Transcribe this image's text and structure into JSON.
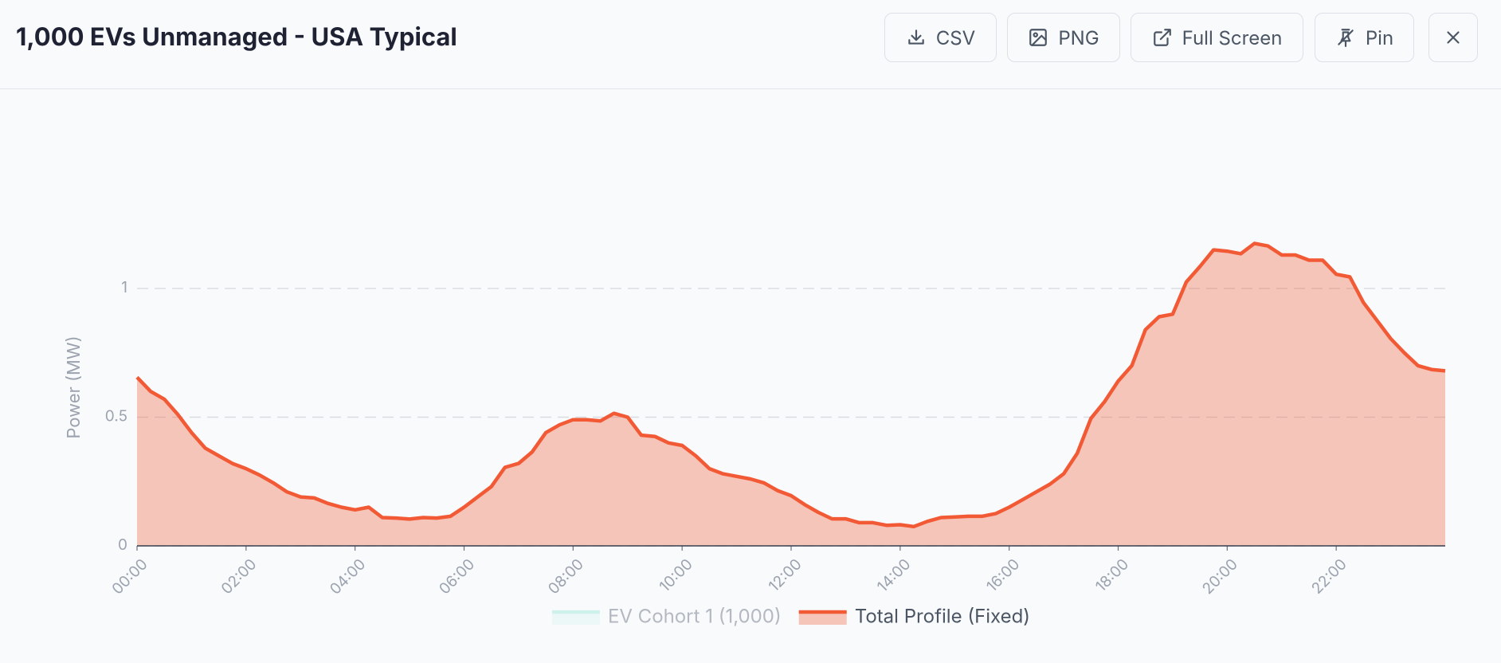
{
  "header": {
    "title": "1,000 EVs Unmanaged - USA Typical",
    "buttons": [
      "CSV",
      "PNG",
      "Full Screen",
      "Pin"
    ]
  },
  "chart_data": {
    "type": "area",
    "y_label": "Power (MW)",
    "x": [
      0,
      0.25,
      0.5,
      0.75,
      1,
      1.25,
      1.5,
      1.75,
      2,
      2.25,
      2.5,
      2.75,
      3,
      3.25,
      3.5,
      3.75,
      4,
      4.25,
      4.5,
      4.75,
      5,
      5.25,
      5.5,
      5.75,
      6,
      6.25,
      6.5,
      6.75,
      7,
      7.25,
      7.5,
      7.75,
      8,
      8.25,
      8.5,
      8.75,
      9,
      9.25,
      9.5,
      9.75,
      10,
      10.25,
      10.5,
      10.75,
      11,
      11.25,
      11.5,
      11.75,
      12,
      12.25,
      12.5,
      12.75,
      13,
      13.25,
      13.5,
      13.75,
      14,
      14.25,
      14.5,
      14.75,
      15,
      15.25,
      15.5,
      15.75,
      16,
      16.25,
      16.5,
      16.75,
      17,
      17.25,
      17.5,
      17.75,
      18,
      18.25,
      18.5,
      18.75,
      19,
      19.25,
      19.5,
      19.75,
      20,
      20.25,
      20.5,
      20.75,
      21,
      21.25,
      21.5,
      21.75,
      22,
      22.25,
      22.5,
      22.75,
      23,
      23.25,
      23.5,
      23.75,
      24
    ],
    "xlim": [
      0,
      24
    ],
    "xticks": [
      {
        "value": 0,
        "label": "00:00"
      },
      {
        "value": 2,
        "label": "02:00"
      },
      {
        "value": 4,
        "label": "04:00"
      },
      {
        "value": 6,
        "label": "06:00"
      },
      {
        "value": 8,
        "label": "08:00"
      },
      {
        "value": 10,
        "label": "10:00"
      },
      {
        "value": 12,
        "label": "12:00"
      },
      {
        "value": 14,
        "label": "14:00"
      },
      {
        "value": 16,
        "label": "16:00"
      },
      {
        "value": 18,
        "label": "18:00"
      },
      {
        "value": 20,
        "label": "20:00"
      },
      {
        "value": 22,
        "label": "22:00"
      }
    ],
    "ylim": [
      0,
      1.25
    ],
    "yticks": [
      0,
      0.5,
      1
    ],
    "grid": true,
    "series": [
      {
        "name": "EV Cohort 1 (1,000)",
        "color": "#99e6d8",
        "visible": false
      },
      {
        "name": "Total Profile (Fixed)",
        "color": "#f25a35",
        "visible": true,
        "values": [
          0.655,
          0.6,
          0.57,
          0.51,
          0.44,
          0.38,
          0.35,
          0.32,
          0.3,
          0.275,
          0.245,
          0.21,
          0.19,
          0.186,
          0.165,
          0.15,
          0.14,
          0.15,
          0.11,
          0.108,
          0.104,
          0.11,
          0.108,
          0.115,
          0.15,
          0.19,
          0.23,
          0.305,
          0.32,
          0.365,
          0.44,
          0.47,
          0.49,
          0.49,
          0.485,
          0.515,
          0.5,
          0.43,
          0.425,
          0.4,
          0.39,
          0.35,
          0.3,
          0.28,
          0.27,
          0.26,
          0.245,
          0.215,
          0.195,
          0.16,
          0.13,
          0.105,
          0.105,
          0.09,
          0.09,
          0.08,
          0.082,
          0.075,
          0.095,
          0.11,
          0.112,
          0.115,
          0.115,
          0.125,
          0.15,
          0.18,
          0.21,
          0.24,
          0.28,
          0.36,
          0.495,
          0.56,
          0.64,
          0.7,
          0.84,
          0.89,
          0.9,
          1.025,
          1.085,
          1.15,
          1.145,
          1.135,
          1.175,
          1.165,
          1.13,
          1.13,
          1.11,
          1.11,
          1.055,
          1.045,
          0.945,
          0.875,
          0.805,
          0.75,
          0.7,
          0.685,
          0.68
        ]
      }
    ]
  }
}
